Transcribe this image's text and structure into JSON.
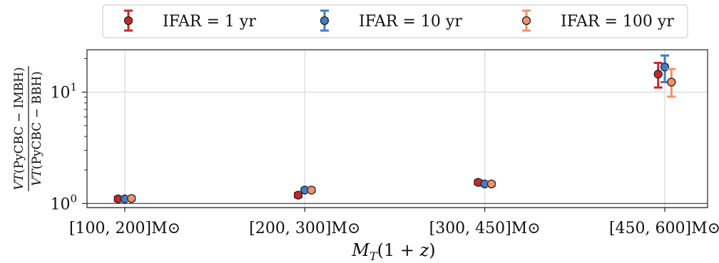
{
  "chart_data": {
    "type": "scatter",
    "xlabel": "M_T(1+z)",
    "ylabel_numerator": "VT(PyCBC − IMBH)",
    "ylabel_denominator": "VT(PyCBC − BBH)",
    "categories": [
      "[100, 200]M⊙",
      "[200, 300]M⊙",
      "[300, 450]M⊙",
      "[450, 600]M⊙"
    ],
    "category_x": [
      150,
      250,
      350,
      450
    ],
    "x_axis_max": 455,
    "y_scale": "log",
    "ylim": [
      0.92,
      24
    ],
    "y_ticks": [
      {
        "value": 1,
        "base": "10",
        "exp": "0"
      },
      {
        "value": 10,
        "base": "10",
        "exp": "1"
      }
    ],
    "reference_line": 1.0,
    "grid": true,
    "legend_position": "top-center",
    "series": [
      {
        "name": "IFAR = 1 yr",
        "color": "#c62828",
        "x_offset": -6,
        "values": [
          1.1,
          1.19,
          1.55,
          14.5
        ],
        "err_low": [
          0.05,
          0.05,
          0.06,
          3.5
        ],
        "err_high": [
          0.05,
          0.05,
          0.06,
          3.8
        ]
      },
      {
        "name": "IFAR = 10 yr",
        "color": "#3f7ec4",
        "x_offset": 0,
        "values": [
          1.1,
          1.32,
          1.5,
          16.8
        ],
        "err_low": [
          0.04,
          0.05,
          0.06,
          4.5
        ],
        "err_high": [
          0.04,
          0.05,
          0.06,
          4.5
        ]
      },
      {
        "name": "IFAR = 100 yr",
        "color": "#f4916a",
        "x_offset": 6,
        "values": [
          1.11,
          1.32,
          1.5,
          12.3
        ],
        "err_low": [
          0.05,
          0.05,
          0.06,
          3.2
        ],
        "err_high": [
          0.05,
          0.05,
          0.06,
          3.8
        ]
      }
    ]
  }
}
